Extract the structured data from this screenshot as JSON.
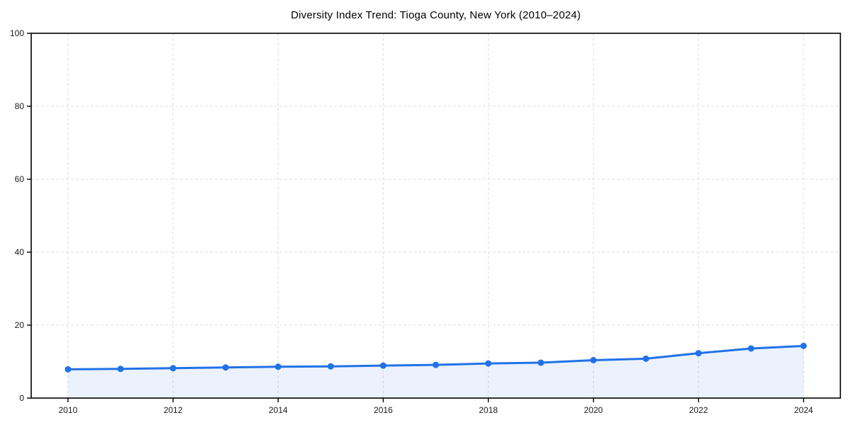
{
  "chart_data": {
    "type": "line",
    "title": "Diversity Index Trend: Tioga County, New York (2010–2024)",
    "x": [
      2010,
      2011,
      2012,
      2013,
      2014,
      2015,
      2016,
      2017,
      2018,
      2019,
      2020,
      2021,
      2022,
      2023,
      2024
    ],
    "series": [
      {
        "name": "Diversity Index",
        "values": [
          7.9,
          8.0,
          8.2,
          8.4,
          8.6,
          8.7,
          8.9,
          9.1,
          9.5,
          9.7,
          10.4,
          10.8,
          12.3,
          13.6,
          14.3
        ]
      }
    ],
    "xticks": [
      2010,
      2012,
      2014,
      2016,
      2018,
      2020,
      2022,
      2024
    ],
    "yticks": [
      0,
      20,
      40,
      60,
      80,
      100
    ],
    "xlim": [
      2009.3,
      2024.7
    ],
    "ylim": [
      0,
      100
    ],
    "xlabel": "",
    "ylabel": "",
    "grid": true,
    "legend": false,
    "area_fill": true,
    "colors": {
      "line": "#2172e8",
      "marker": "#2172e8",
      "fill": "#2172e8",
      "fill_opacity": 0.09,
      "grid": "#e3e3e3",
      "frame": "#000000",
      "tick_label": "#1a1a1a",
      "background": "#ffffff"
    }
  }
}
